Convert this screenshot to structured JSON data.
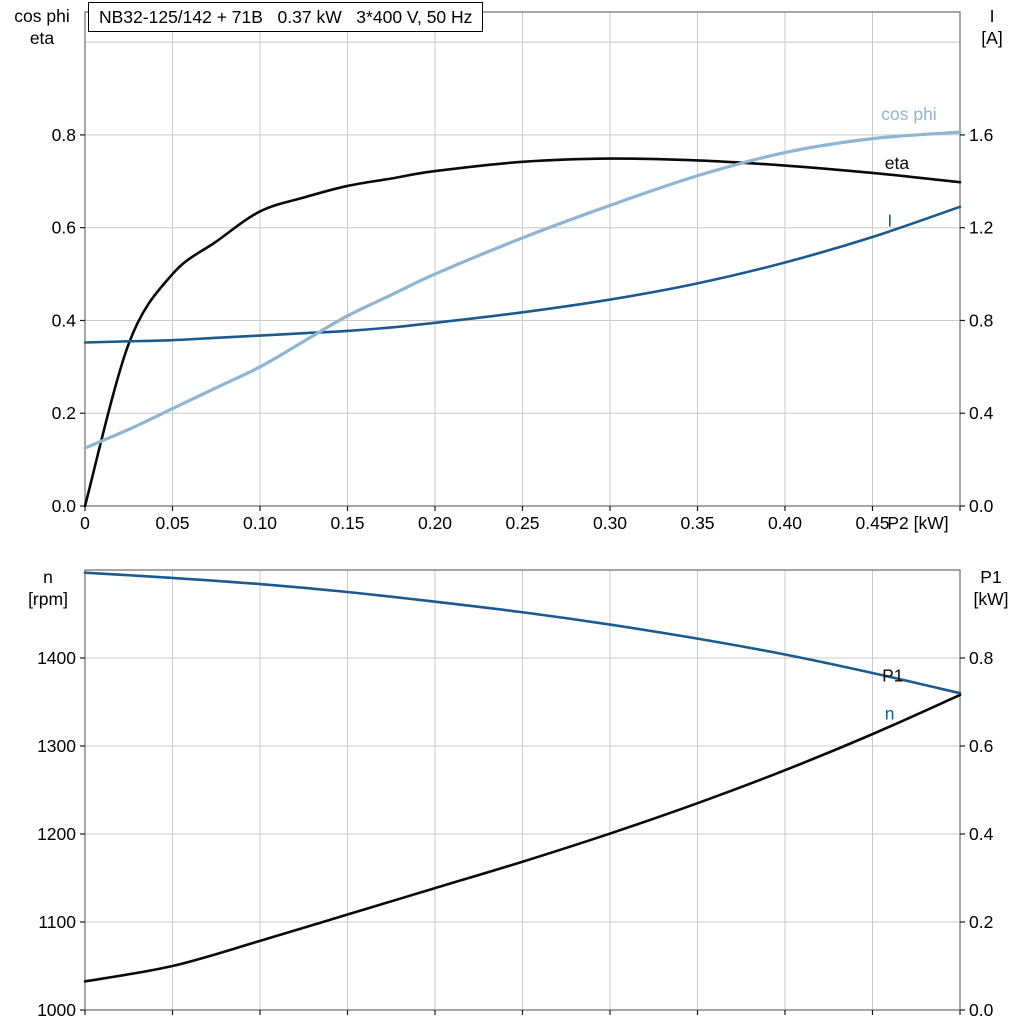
{
  "title_box": {
    "text": "NB32-125/142 + 71B   0.37 kW   3*400 V, 50 Hz"
  },
  "colors": {
    "black": "#0a0a0a",
    "dark_blue": "#1a5a8e",
    "light_blue": "#8fb4d4",
    "grid": "#c9c9c9",
    "frame": "#808080",
    "tick": "#1a1a1a"
  },
  "chart_data": [
    {
      "type": "line",
      "title": "NB32-125/142 + 71B   0.37 kW   3*400 V, 50 Hz",
      "x": {
        "axis_label": "P2 [kW]",
        "min": 0,
        "max": 0.5,
        "grid_step": 0.05,
        "show_tick_labels": true,
        "ticks": [
          0,
          0.05,
          0.1,
          0.15,
          0.2,
          0.25,
          0.3,
          0.35,
          0.4,
          0.45
        ],
        "tick_labels": [
          "0",
          "0.05",
          "0.10",
          "0.15",
          "0.20",
          "0.25",
          "0.30",
          "0.35",
          "0.40",
          "0.45"
        ]
      },
      "y_left": {
        "corner_label": [
          "cos phi",
          "eta"
        ],
        "min": 0,
        "max": 1.065,
        "ticks": [
          0,
          0.2,
          0.4,
          0.6,
          0.8
        ],
        "tick_labels": [
          "0.0",
          "0.2",
          "0.4",
          "0.6",
          "0.8"
        ],
        "grid": [
          0.2,
          0.4,
          0.6,
          0.8,
          1.0
        ]
      },
      "y_right": {
        "corner_label": [
          "I",
          "[A]"
        ],
        "min": 0,
        "max": 2.13,
        "ticks": [
          0,
          0.4,
          0.8,
          1.2,
          1.6
        ],
        "tick_labels": [
          "0.0",
          "0.4",
          "0.8",
          "1.2",
          "1.6"
        ]
      },
      "series": [
        {
          "name": "eta",
          "label": "eta",
          "axis": "left",
          "color_key": "black",
          "width": 2.6,
          "label_pos": {
            "x": 0.457,
            "y": 0.74
          },
          "x": [
            0,
            0.025,
            0.05,
            0.075,
            0.1,
            0.125,
            0.15,
            0.175,
            0.2,
            0.25,
            0.3,
            0.35,
            0.4,
            0.45,
            0.5
          ],
          "y": [
            0,
            0.35,
            0.5,
            0.57,
            0.635,
            0.665,
            0.69,
            0.706,
            0.722,
            0.742,
            0.749,
            0.745,
            0.734,
            0.718,
            0.698
          ]
        },
        {
          "name": "current",
          "label": "I",
          "axis": "right",
          "color_key": "dark_blue",
          "width": 2.6,
          "label_pos": {
            "x": 0.4585,
            "y": 1.23
          },
          "x": [
            0,
            0.025,
            0.05,
            0.075,
            0.1,
            0.125,
            0.15,
            0.175,
            0.2,
            0.25,
            0.3,
            0.35,
            0.4,
            0.45,
            0.5
          ],
          "y": [
            0.705,
            0.71,
            0.715,
            0.725,
            0.735,
            0.745,
            0.755,
            0.77,
            0.79,
            0.835,
            0.89,
            0.96,
            1.05,
            1.16,
            1.29
          ]
        },
        {
          "name": "cos_phi",
          "label": "cos phi",
          "axis": "left",
          "color_key": "light_blue",
          "width": 3.2,
          "label_pos": {
            "x": 0.455,
            "y": 0.845
          },
          "x": [
            0,
            0.025,
            0.05,
            0.075,
            0.1,
            0.125,
            0.15,
            0.175,
            0.2,
            0.25,
            0.3,
            0.35,
            0.4,
            0.45,
            0.5
          ],
          "y": [
            0.125,
            0.165,
            0.21,
            0.255,
            0.3,
            0.355,
            0.41,
            0.455,
            0.5,
            0.578,
            0.648,
            0.712,
            0.762,
            0.792,
            0.806
          ]
        }
      ]
    },
    {
      "type": "line",
      "title": "",
      "x": {
        "axis_label": "",
        "min": 0,
        "max": 0.5,
        "grid_step": 0.05,
        "show_tick_labels": false,
        "ticks": [],
        "tick_labels": []
      },
      "y_left": {
        "corner_label": [
          "n",
          "[rpm]"
        ],
        "min": 1000,
        "max": 1500,
        "ticks": [
          1000,
          1100,
          1200,
          1300,
          1400
        ],
        "tick_labels": [
          "1000",
          "1100",
          "1200",
          "1300",
          "1400"
        ],
        "grid": [
          1100,
          1200,
          1300,
          1400
        ]
      },
      "y_right": {
        "corner_label": [
          "P1",
          "[kW]"
        ],
        "min": 0,
        "max": 1,
        "ticks": [
          0,
          0.2,
          0.4,
          0.6,
          0.8
        ],
        "tick_labels": [
          "0.0",
          "0.2",
          "0.4",
          "0.6",
          "0.8"
        ]
      },
      "series": [
        {
          "name": "speed",
          "label": "n",
          "axis": "left",
          "color_key": "dark_blue",
          "width": 2.6,
          "label_pos": {
            "x": 0.457,
            "y": 1337
          },
          "x": [
            0,
            0.05,
            0.1,
            0.15,
            0.2,
            0.25,
            0.3,
            0.35,
            0.4,
            0.45,
            0.5
          ],
          "y": [
            1497,
            1491,
            1484,
            1475,
            1464,
            1452,
            1438,
            1422,
            1404,
            1383,
            1360
          ]
        },
        {
          "name": "p1",
          "label": "P1",
          "axis": "right",
          "color_key": "black",
          "width": 2.6,
          "label_pos": {
            "x": 0.4555,
            "y": 0.76
          },
          "x": [
            0,
            0.05,
            0.1,
            0.15,
            0.2,
            0.25,
            0.3,
            0.35,
            0.4,
            0.45,
            0.5
          ],
          "y": [
            0.065,
            0.1,
            0.157,
            0.217,
            0.277,
            0.337,
            0.401,
            0.47,
            0.545,
            0.627,
            0.716
          ]
        }
      ]
    }
  ]
}
